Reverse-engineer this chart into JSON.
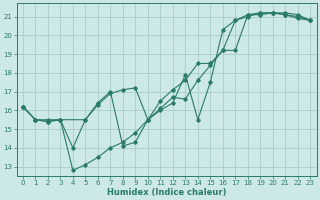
{
  "xlabel": "Humidex (Indice chaleur)",
  "bg_color": "#cce8e8",
  "grid_color": "#aacccc",
  "line_color": "#2a7a6a",
  "xlim": [
    -0.5,
    23.5
  ],
  "ylim": [
    12.5,
    21.7
  ],
  "xticks": [
    0,
    1,
    2,
    3,
    4,
    5,
    6,
    7,
    8,
    9,
    10,
    11,
    12,
    13,
    14,
    15,
    16,
    17,
    18,
    19,
    20,
    21,
    22,
    23
  ],
  "yticks": [
    13,
    14,
    15,
    16,
    17,
    18,
    19,
    20,
    21
  ],
  "line1_x": [
    0,
    1,
    2,
    3,
    5,
    6,
    7,
    8,
    9,
    10,
    11,
    12,
    13,
    14,
    15,
    16,
    17,
    18,
    19,
    20,
    21,
    22,
    23
  ],
  "line1_y": [
    16.2,
    15.5,
    15.5,
    15.5,
    15.5,
    16.3,
    16.9,
    17.1,
    17.2,
    15.5,
    16.5,
    17.1,
    17.6,
    18.5,
    18.5,
    19.2,
    20.8,
    21.1,
    21.2,
    21.2,
    21.1,
    20.9,
    20.8
  ],
  "line2_x": [
    0,
    1,
    2,
    3,
    4,
    5,
    6,
    7,
    8,
    9,
    10,
    11,
    12,
    13,
    14,
    15,
    16,
    17,
    18,
    19,
    20,
    21,
    22,
    23
  ],
  "line2_y": [
    16.2,
    15.5,
    15.4,
    15.5,
    14.0,
    15.5,
    16.4,
    17.0,
    14.1,
    14.3,
    15.5,
    16.1,
    16.7,
    16.6,
    17.6,
    18.4,
    19.2,
    19.2,
    21.1,
    21.1,
    21.2,
    21.1,
    21.0,
    20.8
  ],
  "line3_x": [
    0,
    1,
    2,
    3,
    4,
    5,
    6,
    7,
    8,
    9,
    10,
    11,
    12,
    13,
    14,
    15,
    16,
    17,
    18,
    19,
    20,
    21,
    22,
    23
  ],
  "line3_y": [
    16.2,
    15.5,
    15.4,
    15.5,
    12.8,
    13.1,
    13.5,
    14.0,
    14.3,
    14.8,
    15.5,
    16.0,
    16.4,
    17.9,
    15.5,
    17.5,
    20.3,
    20.8,
    21.0,
    21.2,
    21.2,
    21.2,
    21.1,
    20.8
  ]
}
